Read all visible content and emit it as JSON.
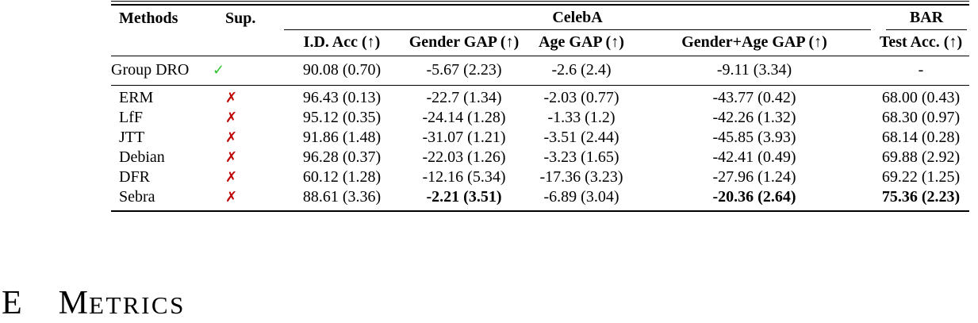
{
  "table": {
    "groups": {
      "celeba": "CelebA",
      "bar": "BAR"
    },
    "headers": {
      "methods": "Methods",
      "sup": "Sup.",
      "id_acc": "I.D. Acc (↑)",
      "gender_gap": "Gender GAP (↑)",
      "age_gap": "Age GAP (↑)",
      "gender_age_gap": "Gender+Age GAP (↑)",
      "test_acc": "Test Acc. (↑)"
    },
    "colors": {
      "check_green": "#2BC52B",
      "cross_red": "#C00000"
    },
    "rows": [
      {
        "method": "Group DRO",
        "sup": "✓",
        "id_acc": "90.08 (0.70)",
        "gender_gap": "-5.67 (2.23)",
        "age_gap": "-2.6 (2.4)",
        "gender_age_gap": "-9.11 (3.34)",
        "test_acc": "-"
      },
      {
        "method": "ERM",
        "sup": "✗",
        "id_acc": "96.43 (0.13)",
        "gender_gap": "-22.7 (1.34)",
        "age_gap": "-2.03 (0.77)",
        "gender_age_gap": "-43.77 (0.42)",
        "test_acc": "68.00 (0.43)"
      },
      {
        "method": "LfF",
        "sup": "✗",
        "id_acc": "95.12 (0.35)",
        "gender_gap": "-24.14 (1.28)",
        "age_gap": "-1.33 (1.2)",
        "gender_age_gap": "-42.26 (1.32)",
        "test_acc": "68.30 (0.97)"
      },
      {
        "method": "JTT",
        "sup": "✗",
        "id_acc": "91.86 (1.48)",
        "gender_gap": "-31.07 (1.21)",
        "age_gap": "-3.51 (2.44)",
        "gender_age_gap": "-45.85 (3.93)",
        "test_acc": "68.14 (0.28)"
      },
      {
        "method": "Debian",
        "sup": "✗",
        "id_acc": "96.28 (0.37)",
        "gender_gap": "-22.03 (1.26)",
        "age_gap": "-3.23 (1.65)",
        "gender_age_gap": "-42.41 (0.49)",
        "test_acc": "69.88 (2.92)"
      },
      {
        "method": "DFR",
        "sup": "✗",
        "id_acc": "60.12 (1.28)",
        "gender_gap": "-12.16 (5.34)",
        "age_gap": "-17.36 (3.23)",
        "gender_age_gap": "-27.96 (1.24)",
        "test_acc": "69.22 (1.25)"
      },
      {
        "method": "Sebra",
        "sup": "✗",
        "id_acc": "88.61 (3.36)",
        "gender_gap": "-2.21 (3.51)",
        "age_gap": "-6.89 (3.04)",
        "gender_age_gap": "-20.36 (2.64)",
        "test_acc": "75.36 (2.23)"
      }
    ]
  },
  "heading": {
    "number": "E",
    "title_first": "M",
    "title_rest": "ETRICS"
  }
}
